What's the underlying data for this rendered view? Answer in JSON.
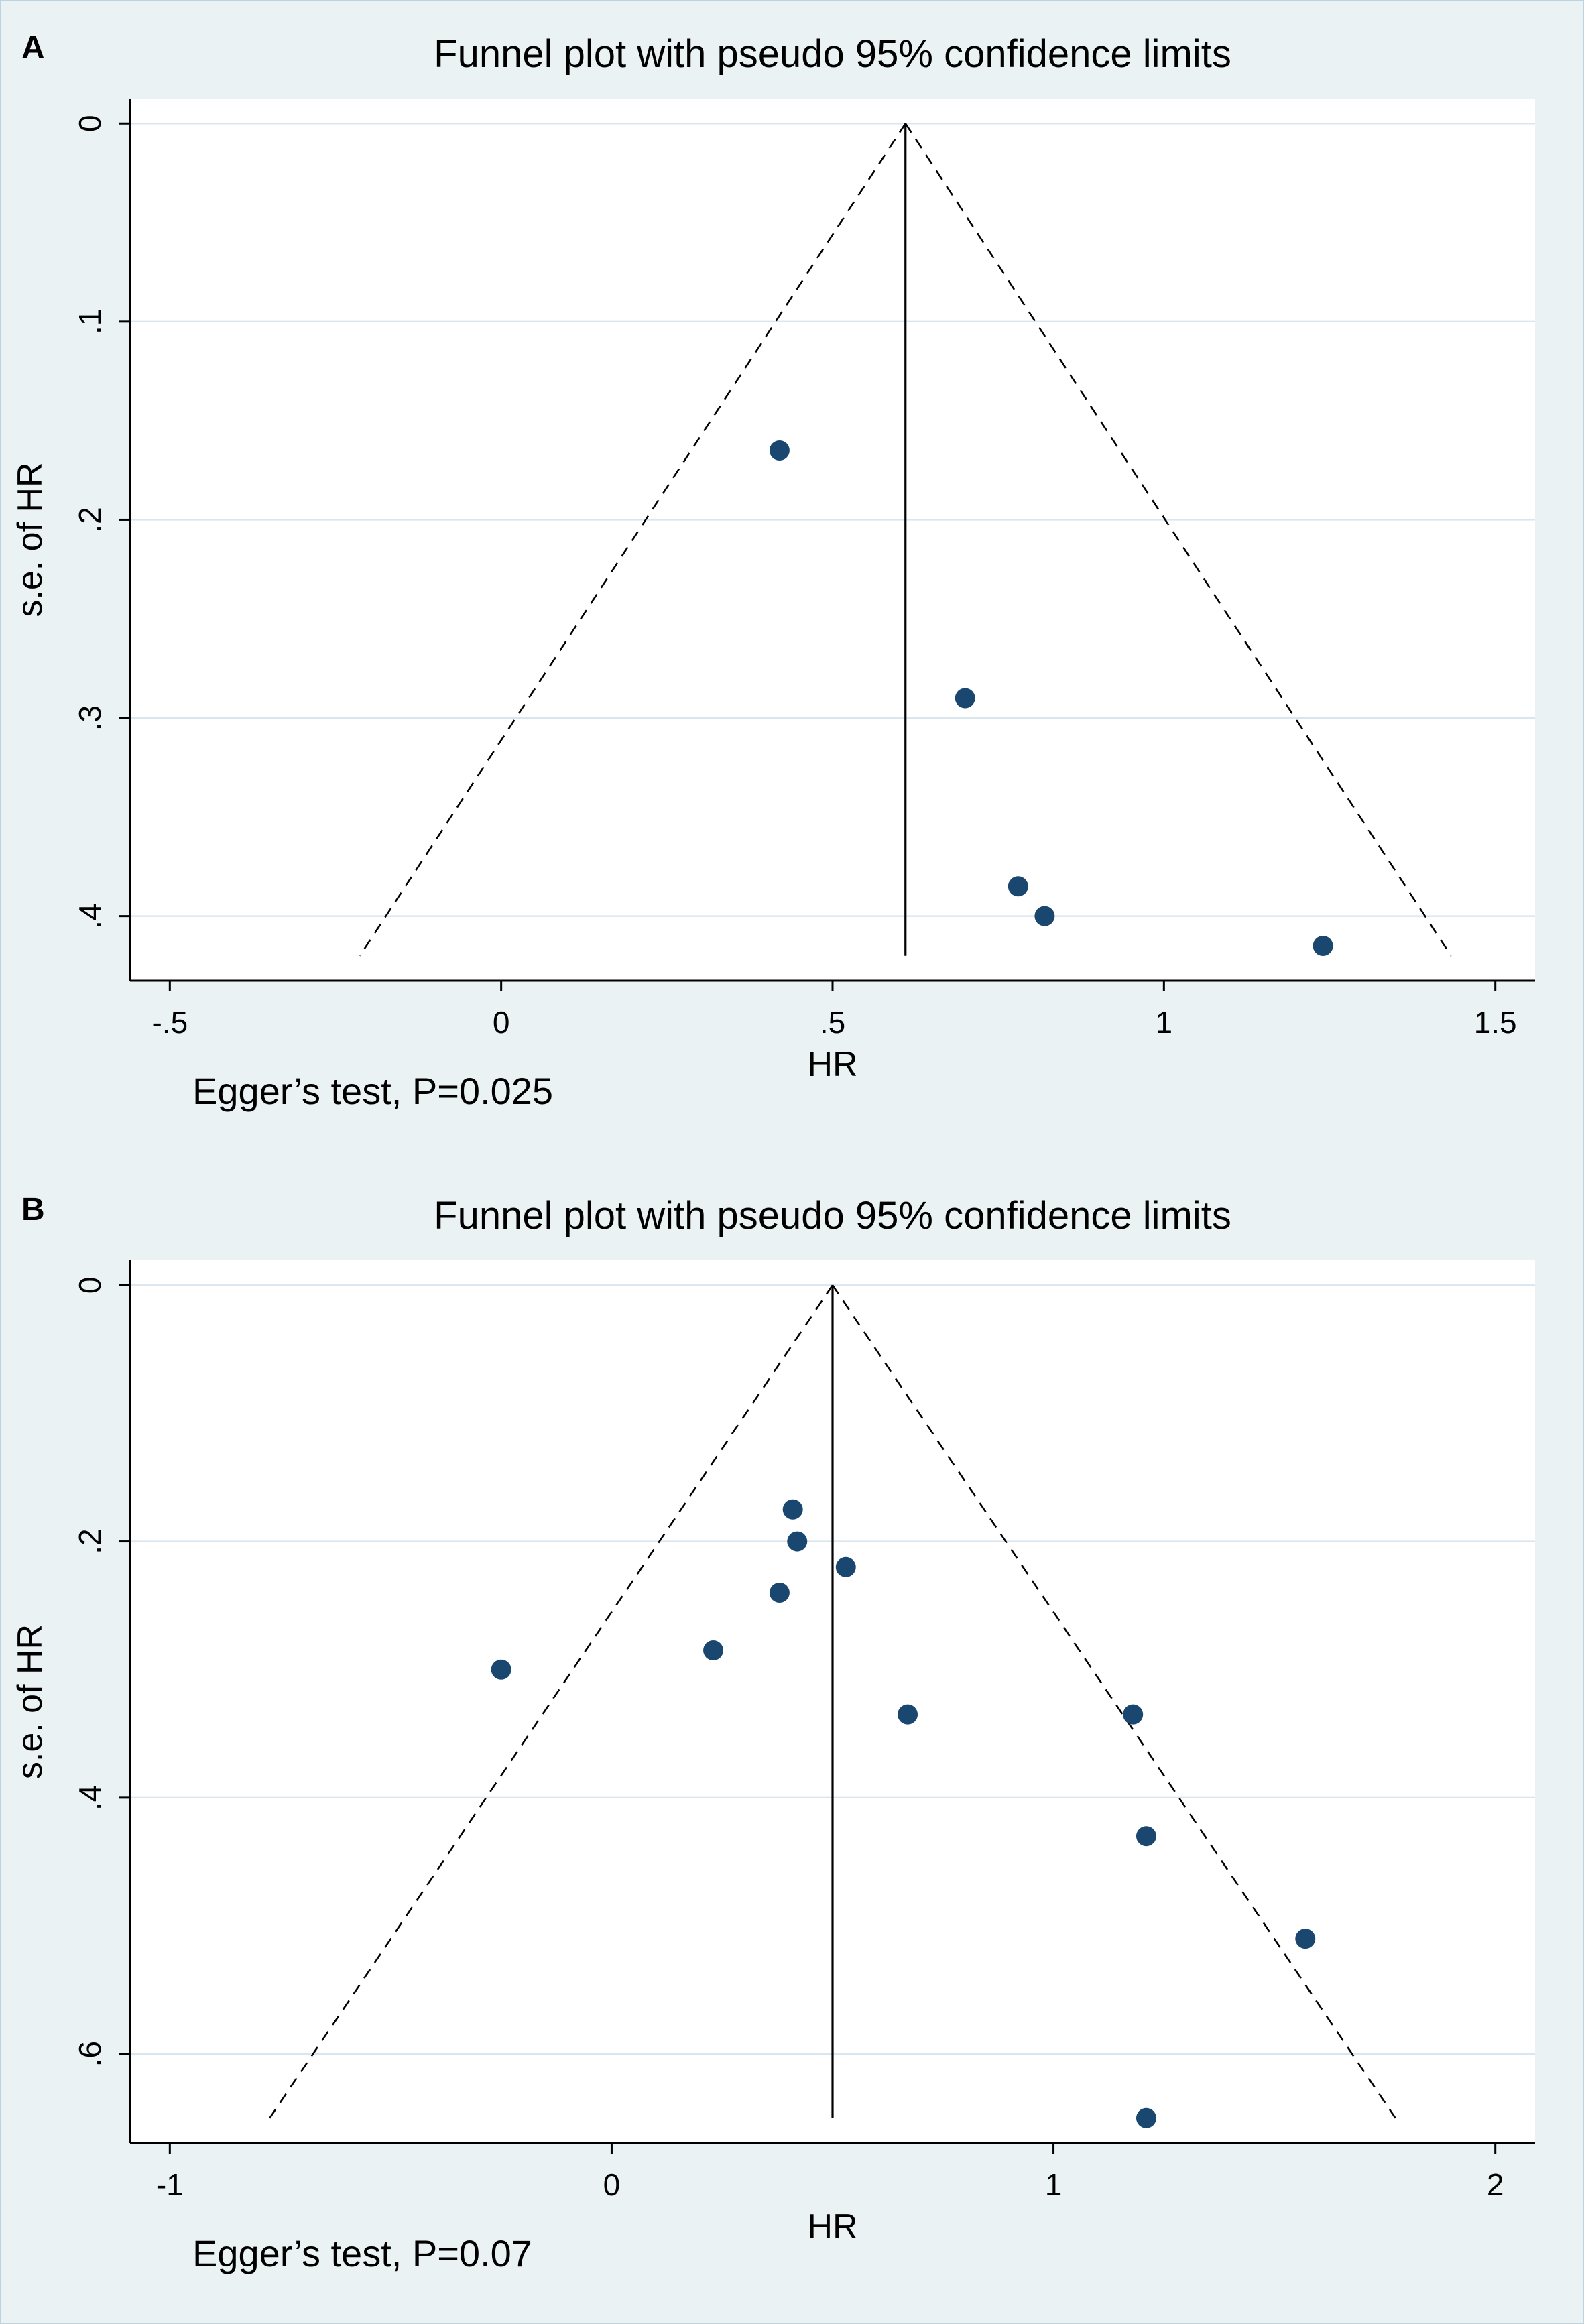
{
  "figure": {
    "background": "#eaf2f3",
    "plot_background": "#ffffff",
    "grid_color": "#d9e6f0",
    "point_color": "#1a476f",
    "axis_color": "#000000",
    "text_color": "#000000",
    "border_color": "#bdd3df"
  },
  "chart_data": [
    {
      "type": "scatter",
      "panel_label": "A",
      "title": "Funnel plot with pseudo 95% confidence limits",
      "xlabel": "HR",
      "ylabel": "s.e. of HR",
      "annotation": "Egger’s test, P=0.025",
      "xlim": [
        -0.5,
        1.5
      ],
      "ylim": [
        0,
        0.4
      ],
      "xticks": [
        -0.5,
        0,
        0.5,
        1,
        1.5
      ],
      "xtick_labels": [
        "-.5",
        "0",
        ".5",
        "1",
        "1.5"
      ],
      "yticks": [
        0,
        0.1,
        0.2,
        0.3,
        0.4
      ],
      "ytick_labels": [
        "0",
        ".1",
        ".2",
        ".3",
        ".4"
      ],
      "y_axis": "inverted (s.e. increases downward)",
      "grid": "horizontal",
      "legend": "none",
      "pooled_hr": 0.61,
      "funnel_max_se": 0.42,
      "ci_z": 1.96,
      "points": [
        [
          0.42,
          0.165
        ],
        [
          0.7,
          0.29
        ],
        [
          0.78,
          0.385
        ],
        [
          0.82,
          0.4
        ],
        [
          1.24,
          0.415
        ]
      ]
    },
    {
      "type": "scatter",
      "panel_label": "B",
      "title": "Funnel plot with pseudo 95% confidence limits",
      "xlabel": "HR",
      "ylabel": "s.e. of HR",
      "annotation": "Egger’s test, P=0.07",
      "xlim": [
        -1,
        2
      ],
      "ylim": [
        0,
        0.6
      ],
      "xticks": [
        -1,
        0,
        1,
        2
      ],
      "xtick_labels": [
        "-1",
        "0",
        "1",
        "2"
      ],
      "yticks": [
        0,
        0.2,
        0.4,
        0.6
      ],
      "ytick_labels": [
        "0",
        ".2",
        ".4",
        ".6"
      ],
      "y_axis": "inverted (s.e. increases downward)",
      "grid": "horizontal",
      "legend": "none",
      "pooled_hr": 0.5,
      "funnel_max_se": 0.65,
      "ci_z": 1.96,
      "points": [
        [
          0.41,
          0.175
        ],
        [
          0.42,
          0.2
        ],
        [
          0.53,
          0.22
        ],
        [
          0.38,
          0.24
        ],
        [
          0.23,
          0.285
        ],
        [
          -0.25,
          0.3
        ],
        [
          0.67,
          0.335
        ],
        [
          1.18,
          0.335
        ],
        [
          1.21,
          0.43
        ],
        [
          1.57,
          0.51
        ],
        [
          1.21,
          0.65
        ]
      ]
    }
  ]
}
